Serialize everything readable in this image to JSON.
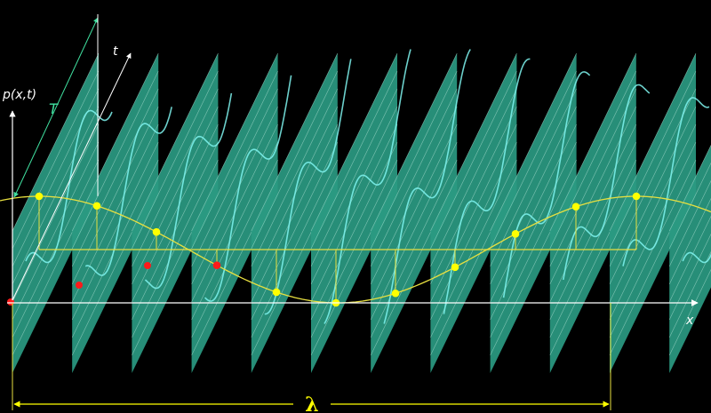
{
  "labels": {
    "p_axis": "p(x,t)",
    "t_axis": "t",
    "x_axis": "x",
    "period": "T",
    "wavelength": "λ"
  },
  "colors": {
    "background": "#000000",
    "panel": "#2a9a82",
    "panel_line": "#c8f0e4",
    "trace": "#7ff5f0",
    "envelope": "#e8e040",
    "yellow_dot": "#ffff00",
    "red_dot": "#ff1a1a",
    "axis": "#ffffff",
    "period_arrow": "#40e0a0",
    "lambda": "#ffff00"
  },
  "panels": {
    "count": 12
  }
}
